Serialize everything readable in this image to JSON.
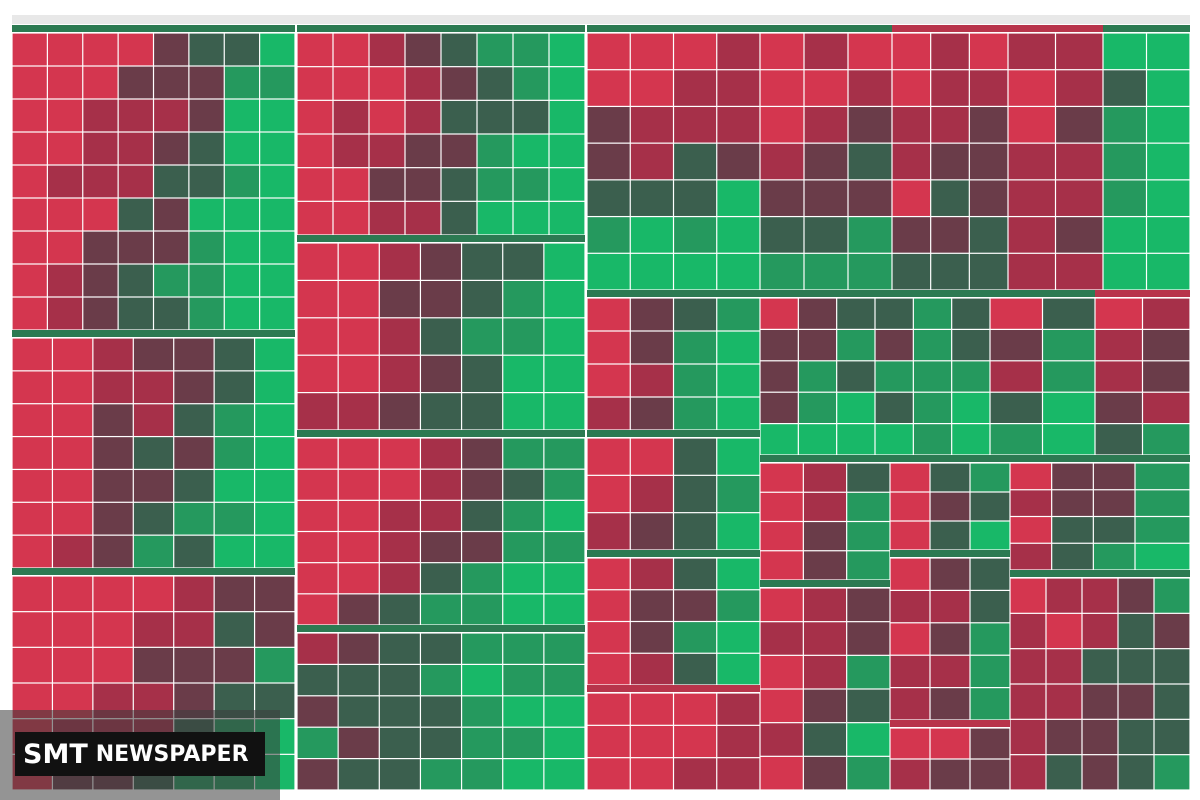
{
  "watermark": {
    "brand": "SMT",
    "name": "NEWSPAPER"
  }
}
